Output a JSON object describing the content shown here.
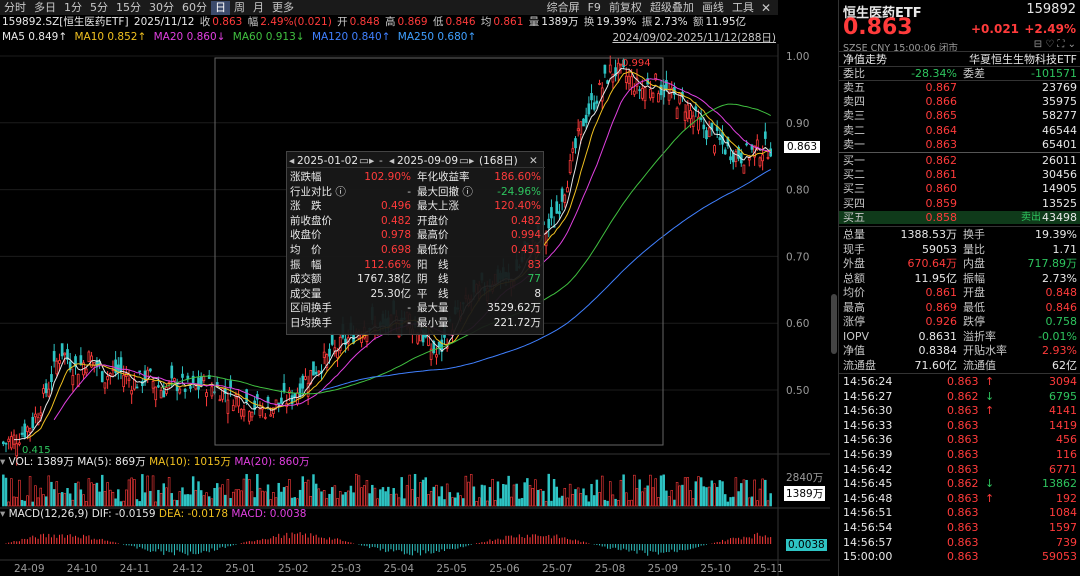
{
  "toolbar": {
    "tabs": [
      "分时",
      "多日",
      "1分",
      "5分",
      "15分",
      "30分",
      "60分",
      "日",
      "周",
      "月",
      "更多"
    ],
    "active": "日",
    "right": [
      "综合屏",
      "F9",
      "前复权",
      "超级叠加",
      "画线",
      "工具"
    ],
    "close": "✕"
  },
  "info": {
    "code": "159892.SZ[恒生医药ETF]",
    "date": "2025/11/12",
    "close_label": "收",
    "close": "0.863",
    "chg_label": "幅",
    "chg": "2.49%(0.021)",
    "open_label": "开",
    "open": "0.848",
    "high_label": "高",
    "high": "0.869",
    "low_label": "低",
    "low": "0.846",
    "avg_label": "均",
    "avg": "0.861",
    "vol_label": "量",
    "vol": "1389万",
    "turn_label": "换",
    "turn": "19.39%",
    "amp_label": "振",
    "amp": "2.73%",
    "amt_label": "额",
    "amt": "11.95亿"
  },
  "ma": {
    "ma5": "MA5 0.849↑",
    "ma10": "MA10 0.852↑",
    "ma20": "MA20 0.860↓",
    "ma60": "MA60 0.913↓",
    "ma120": "MA120 0.840↑",
    "ma250": "MA250 0.680↑"
  },
  "date_range": "2024/09/02-2025/11/12(288日)",
  "price_axis": [
    "1.00",
    "0.90",
    "0.80",
    "0.70",
    "0.60",
    "0.50"
  ],
  "last_price_tag": "0.863",
  "high_marker": "0.994",
  "low_marker": "0.415",
  "vol_panel": {
    "title": "VOL: 1389万",
    "ma5": "MA(5): 869万",
    "ma10": "MA(10): 1015万",
    "ma20": "MA(20): 860万",
    "axis_top": "2840万",
    "tag": "1389万"
  },
  "macd_panel": {
    "title": "MACD(12,26,9)",
    "dif": "DIF: -0.0159",
    "dea": "DEA: -0.0178",
    "macd": "MACD: 0.0038",
    "tag": "0.0038"
  },
  "x_axis": [
    "24-09",
    "24-10",
    "24-11",
    "24-12",
    "25-01",
    "25-02",
    "25-03",
    "25-04",
    "25-05",
    "25-06",
    "25-07",
    "25-08",
    "25-09",
    "25-10",
    "25-11"
  ],
  "popup": {
    "start": "2025-01-02",
    "end": "2025-09-09",
    "days": "(168日)",
    "rows": [
      [
        "涨跌幅",
        "102.90%",
        "年化收益率",
        "186.60%"
      ],
      [
        "行业对比 ⓘ",
        "-",
        "最大回撤 ⓘ",
        "-24.96%"
      ],
      [
        "涨　跌",
        "0.496",
        "最大上涨",
        "120.40%"
      ],
      [
        "前收盘价",
        "0.482",
        "开盘价",
        "0.482"
      ],
      [
        "收盘价",
        "0.978",
        "最高价",
        "0.994"
      ],
      [
        "均　价",
        "0.698",
        "最低价",
        "0.451"
      ],
      [
        "振　幅",
        "112.66%",
        "阳　线",
        "83"
      ],
      [
        "成交额",
        "1767.38亿",
        "阴　线",
        "77"
      ],
      [
        "成交量",
        "25.30亿",
        "平　线",
        "8"
      ],
      [
        "区间换手",
        "-",
        "最大量",
        "3529.62万"
      ],
      [
        "日均换手",
        "-",
        "最小量",
        "221.72万"
      ]
    ]
  },
  "quote": {
    "name": "恒生医药ETF",
    "code": "159892",
    "price": "0.863",
    "change": "+0.021",
    "pct": "+2.49%",
    "market": "SZSE  CNY  15:00:06  闭市",
    "fund_label": "净值走势",
    "fund_name": "华夏恒生生物科技ETF",
    "weibi_label": "委比",
    "weibi": "-28.34%",
    "weicha_label": "委差",
    "weicha": "-101571",
    "asks": [
      [
        "卖五",
        "0.867",
        "23769"
      ],
      [
        "卖四",
        "0.866",
        "35975"
      ],
      [
        "卖三",
        "0.865",
        "58277"
      ],
      [
        "卖二",
        "0.864",
        "46544"
      ],
      [
        "卖一",
        "0.863",
        "65401"
      ]
    ],
    "bids": [
      [
        "买一",
        "0.862",
        "26011"
      ],
      [
        "买二",
        "0.861",
        "30456"
      ],
      [
        "买三",
        "0.860",
        "14905"
      ],
      [
        "买四",
        "0.859",
        "13525"
      ],
      [
        "买五",
        "0.858",
        "43498"
      ]
    ],
    "bid5_tag": "卖出",
    "stats": [
      [
        "总量",
        "1388.53万",
        "换手",
        "19.39%"
      ],
      [
        "现手",
        "59053",
        "量比",
        "1.71"
      ],
      [
        "外盘",
        "670.64万",
        "内盘",
        "717.89万"
      ],
      [
        "总额",
        "11.95亿",
        "振幅",
        "2.73%"
      ],
      [
        "均价",
        "0.861",
        "开盘",
        "0.848"
      ],
      [
        "最高",
        "0.869",
        "最低",
        "0.846"
      ],
      [
        "涨停",
        "0.926",
        "跌停",
        "0.758"
      ],
      [
        "IOPV",
        "0.8631",
        "溢折率",
        "-0.01%"
      ],
      [
        "净值",
        "0.8384",
        "开贴水率",
        "2.93%"
      ],
      [
        "流通盘",
        "71.60亿",
        "流通值",
        "62亿"
      ]
    ],
    "ticks": [
      [
        "14:56:24",
        "0.863",
        "↑",
        "3094"
      ],
      [
        "14:56:27",
        "0.862",
        "↓",
        "6795"
      ],
      [
        "14:56:30",
        "0.863",
        "↑",
        "4141"
      ],
      [
        "14:56:33",
        "0.863",
        "",
        "1419"
      ],
      [
        "14:56:36",
        "0.863",
        "",
        "456"
      ],
      [
        "14:56:39",
        "0.863",
        "",
        "116"
      ],
      [
        "14:56:42",
        "0.863",
        "",
        "6771"
      ],
      [
        "14:56:45",
        "0.862",
        "↓",
        "13862"
      ],
      [
        "14:56:48",
        "0.863",
        "↑",
        "192"
      ],
      [
        "14:56:51",
        "0.863",
        "",
        "1084"
      ],
      [
        "14:56:54",
        "0.863",
        "",
        "1597"
      ],
      [
        "14:56:57",
        "0.863",
        "",
        "739"
      ],
      [
        "15:00:00",
        "0.863",
        "",
        "59053"
      ]
    ]
  },
  "chart_data": {
    "type": "candlestick",
    "ylim": [
      0.4,
      1.02
    ],
    "x_labels": [
      "24-09",
      "24-10",
      "24-11",
      "24-12",
      "25-01",
      "25-02",
      "25-03",
      "25-04",
      "25-05",
      "25-06",
      "25-07",
      "25-08",
      "25-09",
      "25-10",
      "25-11"
    ],
    "close_path": [
      0.42,
      0.43,
      0.45,
      0.5,
      0.56,
      0.53,
      0.55,
      0.52,
      0.53,
      0.51,
      0.52,
      0.5,
      0.51,
      0.5,
      0.51,
      0.5,
      0.49,
      0.48,
      0.47,
      0.48,
      0.49,
      0.52,
      0.54,
      0.56,
      0.58,
      0.6,
      0.59,
      0.6,
      0.61,
      0.58,
      0.55,
      0.6,
      0.63,
      0.65,
      0.67,
      0.66,
      0.7,
      0.73,
      0.75,
      0.82,
      0.9,
      0.94,
      0.98,
      0.97,
      0.95,
      0.96,
      0.94,
      0.93,
      0.9,
      0.88,
      0.86,
      0.85,
      0.86,
      0.863
    ],
    "annotations": {
      "high": 0.994,
      "low": 0.415,
      "last": 0.863
    }
  },
  "colors": {
    "up": "#ff3b3b",
    "down": "#2ec4c4",
    "ma5": "#e8e8e8",
    "ma10": "#f0c020",
    "ma20": "#e040e0",
    "ma60": "#40c040",
    "ma120": "#4080ff"
  }
}
